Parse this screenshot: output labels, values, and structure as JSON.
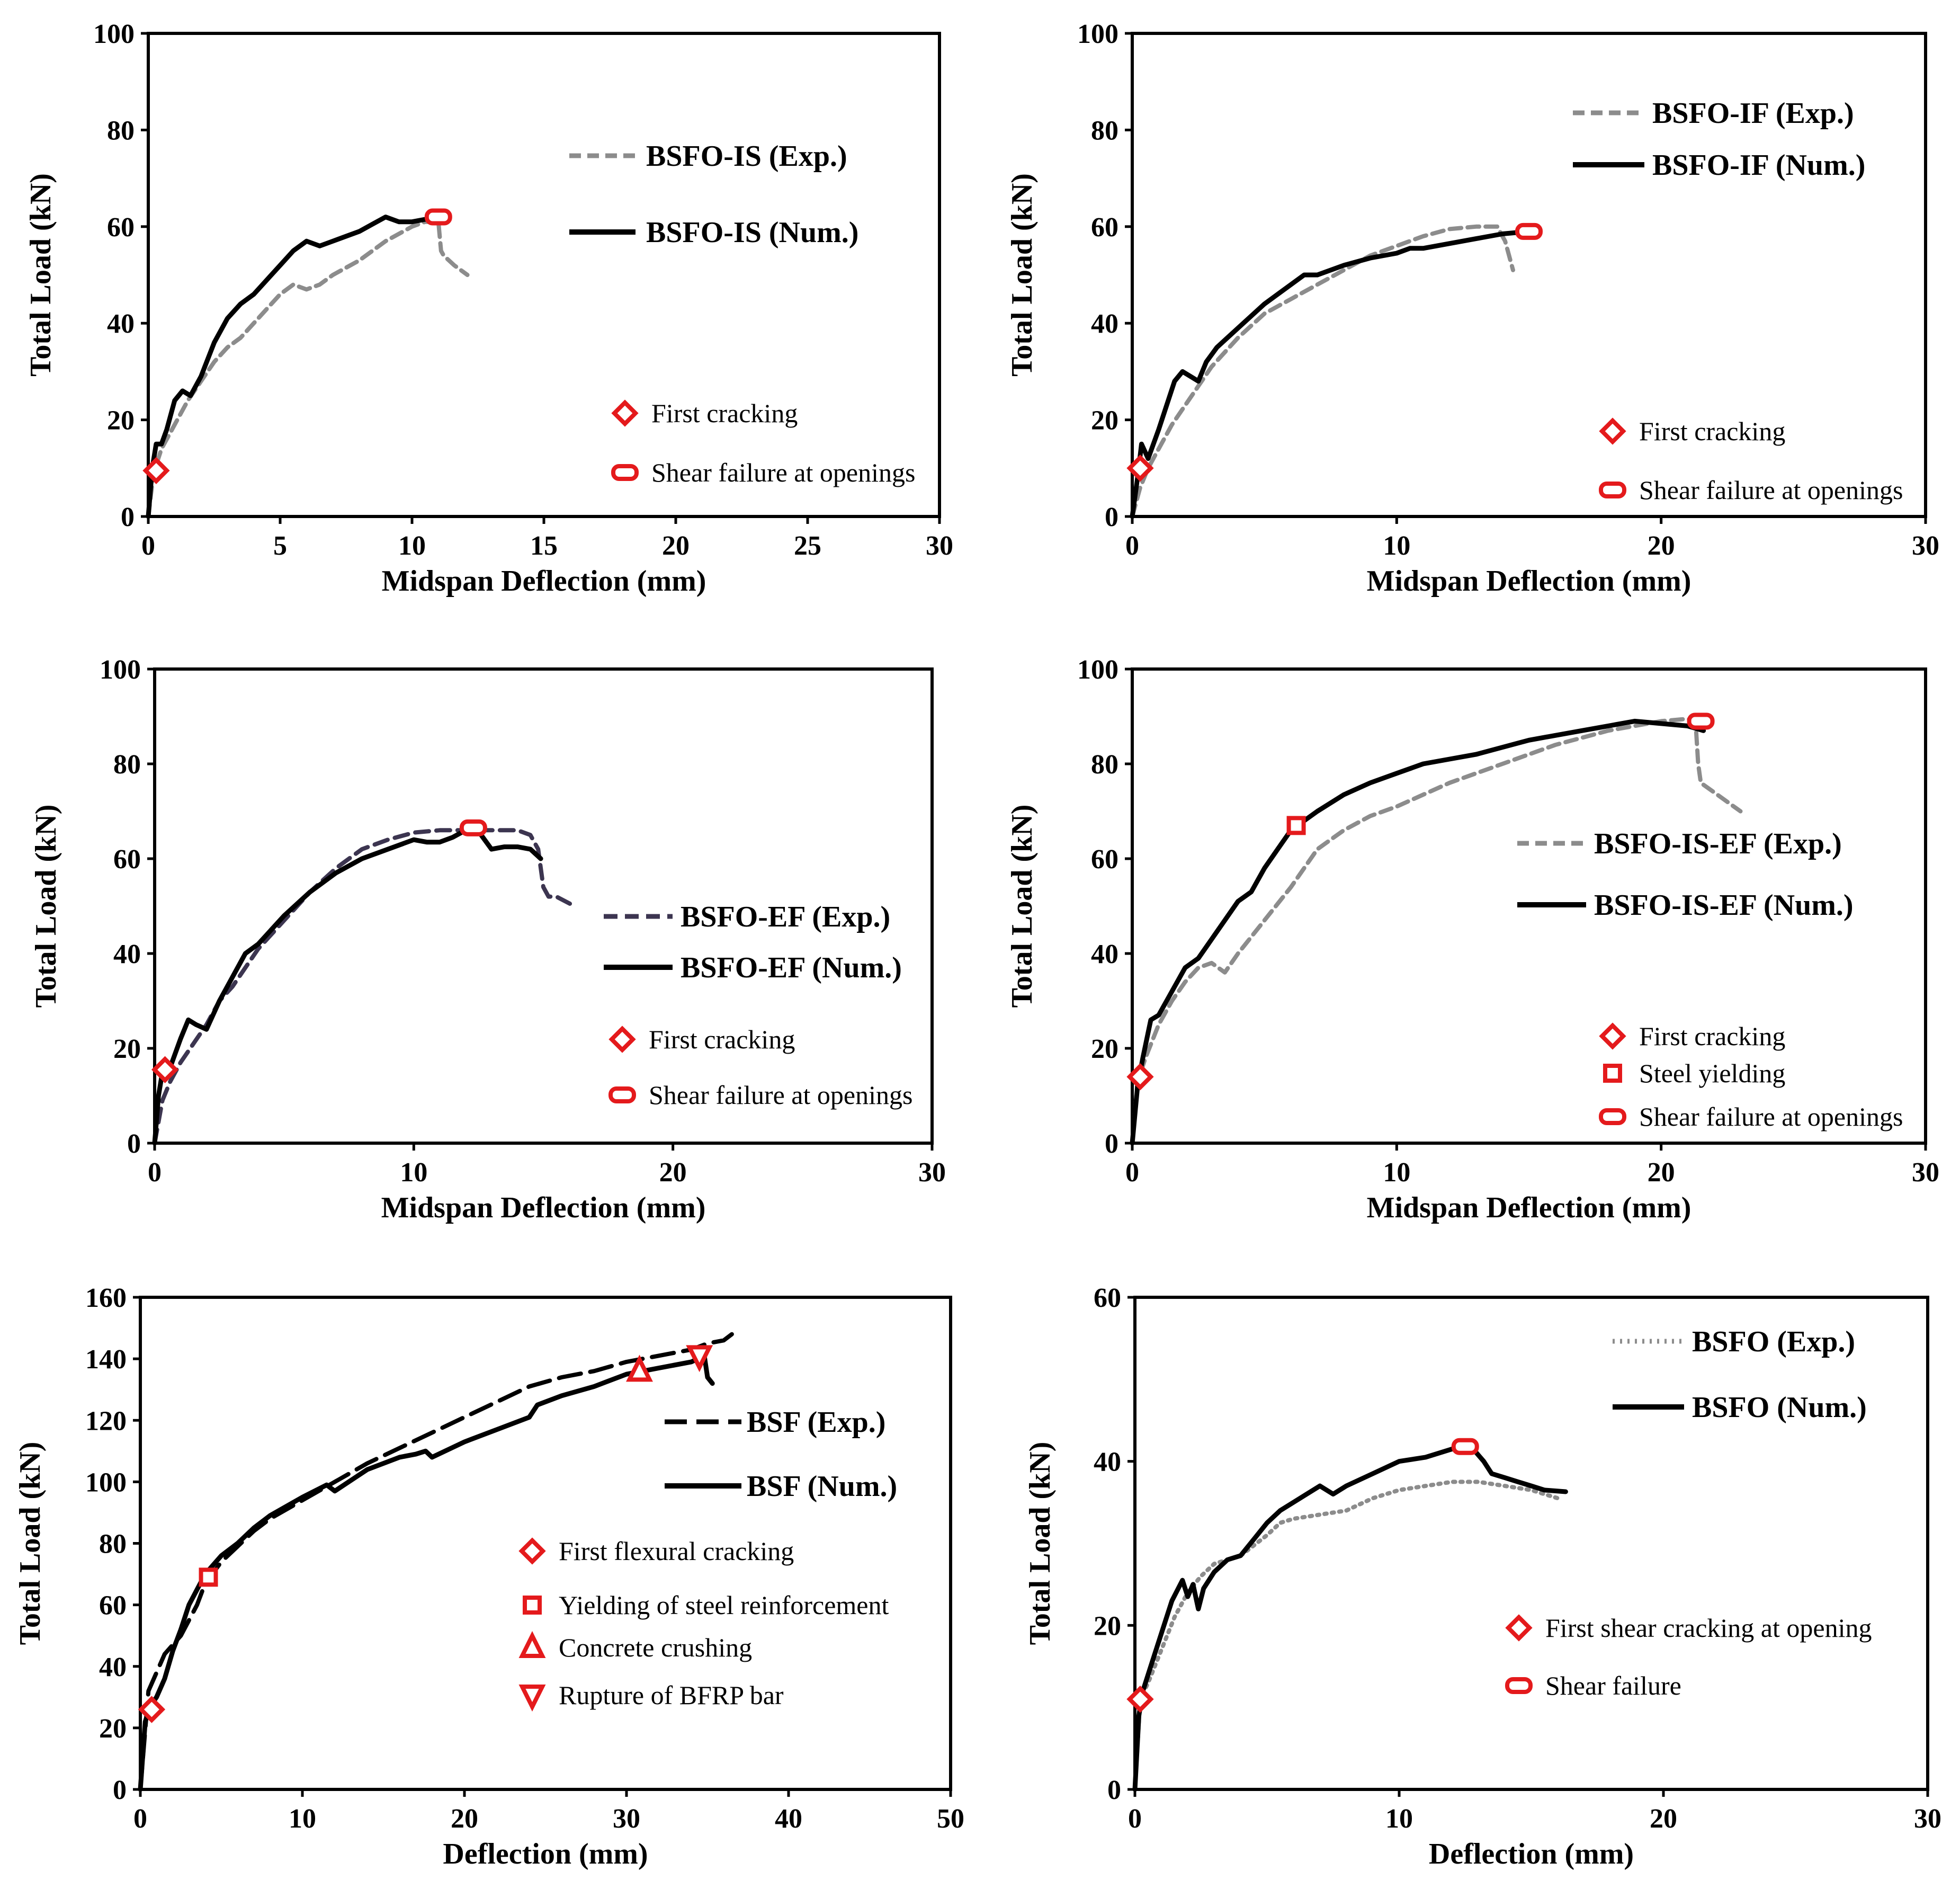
{
  "chart_data": [
    {
      "type": "line",
      "xlabel": "Midspan Deflection (mm)",
      "ylabel": "Total Load (kN)",
      "xlim": [
        0,
        30
      ],
      "ylim": [
        0,
        100
      ],
      "xticks": [
        "0",
        "5",
        "10",
        "15",
        "20",
        "25",
        "30"
      ],
      "yticks": [
        "0",
        "20",
        "40",
        "60",
        "80",
        "100"
      ],
      "legend": [
        {
          "label": "BSFO-IS (Exp.)",
          "style": "dashed-gray"
        },
        {
          "label": "BSFO-IS (Num.)",
          "style": "solid-black"
        }
      ],
      "series": [
        {
          "name": "BSFO-IS (Exp.)",
          "style": "dashed-gray",
          "x": [
            0,
            0.2,
            0.5,
            1,
            1.5,
            2,
            2.5,
            3,
            3.5,
            4,
            4.5,
            5,
            5.5,
            6,
            6.5,
            7,
            8,
            9,
            10,
            10.5,
            11,
            11.1,
            11.2,
            11.6,
            12.1
          ],
          "y": [
            0,
            9,
            14,
            19,
            24,
            28,
            32,
            35,
            37,
            40,
            43,
            46,
            48,
            47,
            48,
            50,
            53,
            57,
            60,
            61,
            61,
            55,
            54,
            52,
            50
          ]
        },
        {
          "name": "BSFO-IS (Num.)",
          "style": "solid-black",
          "x": [
            0,
            0.15,
            0.3,
            0.5,
            0.7,
            1,
            1.3,
            1.6,
            2,
            2.5,
            3,
            3.5,
            4,
            4.5,
            5,
            5.5,
            6,
            6.5,
            7,
            7.5,
            8,
            8.5,
            9,
            9.5,
            10,
            10.5,
            11
          ],
          "y": [
            0,
            10,
            15,
            15,
            18,
            24,
            26,
            25,
            29,
            36,
            41,
            44,
            46,
            49,
            52,
            55,
            57,
            56,
            57,
            58,
            59,
            60.5,
            62,
            61,
            61,
            61.5,
            61.5
          ]
        }
      ],
      "markers": [
        {
          "label": "First cracking",
          "shape": "diamond",
          "x": 0.3,
          "y": 9.5
        },
        {
          "label": "Shear failure at openings",
          "shape": "rounded-rect",
          "x": 11,
          "y": 62
        }
      ]
    },
    {
      "type": "line",
      "xlabel": "Midspan Deflection (mm)",
      "ylabel": "Total Load (kN)",
      "xlim": [
        0,
        30
      ],
      "ylim": [
        0,
        100
      ],
      "xticks": [
        "0",
        "10",
        "20",
        "30"
      ],
      "yticks": [
        "0",
        "20",
        "40",
        "60",
        "80",
        "100"
      ],
      "legend": [
        {
          "label": "BSFO-IF (Exp.)",
          "style": "dashed-gray"
        },
        {
          "label": "BSFO-IF (Num.)",
          "style": "solid-black"
        }
      ],
      "series": [
        {
          "name": "BSFO-IF (Exp.)",
          "style": "dashed-gray",
          "x": [
            0,
            0.3,
            0.6,
            1,
            1.5,
            2,
            2.5,
            3,
            4,
            5,
            6,
            7,
            8,
            9,
            10,
            11,
            12,
            13,
            13.8,
            14.1,
            14.4
          ],
          "y": [
            0,
            6,
            10,
            14,
            19,
            23,
            27,
            31,
            37,
            42,
            45,
            48,
            51,
            54,
            56,
            58,
            59.5,
            60,
            60,
            57,
            51
          ]
        },
        {
          "name": "BSFO-IF (Num.)",
          "style": "solid-black",
          "x": [
            0,
            0.2,
            0.35,
            0.6,
            1,
            1.3,
            1.6,
            1.9,
            2.2,
            2.5,
            2.8,
            3.2,
            4,
            5,
            5.5,
            6,
            6.5,
            7,
            8,
            9,
            10,
            10.5,
            11,
            12,
            13,
            14,
            15
          ],
          "y": [
            0,
            8,
            15,
            12,
            18,
            23,
            28,
            30,
            29,
            28,
            32,
            35,
            39,
            44,
            46,
            48,
            50,
            50,
            52,
            53.5,
            54.5,
            55.5,
            55.5,
            56.5,
            57.5,
            58.5,
            59
          ]
        }
      ],
      "markers": [
        {
          "label": "First cracking",
          "shape": "diamond",
          "x": 0.3,
          "y": 10
        },
        {
          "label": "Shear failure at openings",
          "shape": "rounded-rect",
          "x": 15,
          "y": 59
        }
      ]
    },
    {
      "type": "line",
      "xlabel": "Midspan Deflection (mm)",
      "ylabel": "Total Load (kN)",
      "xlim": [
        0,
        30
      ],
      "ylim": [
        0,
        100
      ],
      "xticks": [
        "0",
        "10",
        "20",
        "30"
      ],
      "yticks": [
        "0",
        "20",
        "40",
        "60",
        "80",
        "100"
      ],
      "legend": [
        {
          "label": "BSFO-EF (Exp.)",
          "style": "dashed-dark"
        },
        {
          "label": "BSFO-EF (Num.)",
          "style": "solid-black"
        }
      ],
      "series": [
        {
          "name": "BSFO-EF (Exp.)",
          "style": "dashed-dark",
          "x": [
            0,
            0.3,
            0.6,
            1,
            1.5,
            2,
            2.5,
            3,
            3.5,
            4,
            5,
            6,
            7,
            8,
            9,
            10,
            11,
            12,
            13,
            14,
            14.5,
            14.8,
            14.9,
            15,
            15.2,
            15.5,
            16.2
          ],
          "y": [
            0,
            9,
            13,
            17,
            21,
            25,
            30,
            33,
            37,
            41,
            47,
            53,
            58,
            62,
            64,
            65.5,
            66,
            66,
            66,
            66,
            65,
            62,
            58,
            54,
            52,
            52,
            50
          ]
        },
        {
          "name": "BSFO-EF (Num.)",
          "style": "solid-black",
          "x": [
            0,
            0.15,
            0.3,
            0.6,
            1,
            1.3,
            1.6,
            2,
            2.5,
            3,
            3.5,
            4,
            5,
            6,
            7,
            8,
            9,
            10,
            10.5,
            11,
            11.5,
            12,
            12.3,
            12.6,
            13,
            13.5,
            14,
            14.5,
            14.9
          ],
          "y": [
            0,
            10,
            15,
            16,
            22,
            26,
            25,
            24,
            30,
            35,
            40,
            42,
            48,
            53,
            57,
            60,
            62,
            64,
            63.5,
            63.5,
            64.5,
            66,
            67,
            65,
            62,
            62.5,
            62.5,
            62,
            60
          ]
        }
      ],
      "markers": [
        {
          "label": "First cracking",
          "shape": "diamond",
          "x": 0.4,
          "y": 15.5
        },
        {
          "label": "Shear failure at openings",
          "shape": "rounded-rect",
          "x": 12.3,
          "y": 66.5
        }
      ]
    },
    {
      "type": "line",
      "xlabel": "Midspan Deflection (mm)",
      "ylabel": "Total Load (kN)",
      "xlim": [
        0,
        30
      ],
      "ylim": [
        0,
        100
      ],
      "xticks": [
        "0",
        "10",
        "20",
        "30"
      ],
      "yticks": [
        "0",
        "20",
        "40",
        "60",
        "80",
        "100"
      ],
      "legend": [
        {
          "label": "BSFO-IS-EF (Exp.)",
          "style": "dashed-gray"
        },
        {
          "label": "BSFO-IS-EF (Num.)",
          "style": "solid-black"
        }
      ],
      "series": [
        {
          "name": "BSFO-IS-EF (Exp.)",
          "style": "dashed-gray",
          "x": [
            0,
            0.2,
            0.5,
            1,
            1.5,
            2,
            2.5,
            3,
            3.5,
            4,
            5,
            6,
            7,
            8,
            9,
            10,
            12,
            14,
            16,
            18,
            20,
            21,
            21.3,
            21.4,
            21.5,
            22,
            22.5,
            23
          ],
          "y": [
            0,
            13,
            18,
            25,
            30,
            34,
            37,
            38,
            36,
            40,
            47,
            54,
            62,
            66,
            69,
            71,
            76,
            80,
            84,
            87,
            89,
            89.5,
            89,
            80,
            76,
            74,
            72,
            70
          ]
        },
        {
          "name": "BSFO-IS-EF (Num.)",
          "style": "solid-black",
          "x": [
            0,
            0.2,
            0.4,
            0.7,
            1,
            1.5,
            2,
            2.5,
            3,
            3.5,
            4,
            4.5,
            5,
            5.5,
            6,
            6.5,
            7,
            8,
            9,
            10,
            11,
            12,
            13,
            14,
            15,
            16,
            17,
            18,
            19,
            20,
            21,
            21.6
          ],
          "y": [
            0,
            12,
            18,
            26,
            27,
            32,
            37,
            39,
            43,
            47,
            51,
            53,
            58,
            62,
            66,
            68,
            70,
            73.5,
            76,
            78,
            80,
            81,
            82,
            83.5,
            85,
            86,
            87,
            88,
            89,
            88.5,
            88,
            87
          ]
        }
      ],
      "markers": [
        {
          "label": "First cracking",
          "shape": "diamond",
          "x": 0.3,
          "y": 14
        },
        {
          "label": "Steel yielding",
          "shape": "square",
          "x": 6.2,
          "y": 67
        },
        {
          "label": "Shear failure at openings",
          "shape": "rounded-rect",
          "x": 21.5,
          "y": 89
        }
      ]
    },
    {
      "type": "line",
      "xlabel": "Deflection (mm)",
      "ylabel": "Total Load (kN)",
      "xlim": [
        0,
        50
      ],
      "ylim": [
        0,
        160
      ],
      "xticks": [
        "0",
        "10",
        "20",
        "30",
        "40",
        "50"
      ],
      "yticks": [
        "0",
        "20",
        "40",
        "60",
        "80",
        "100",
        "120",
        "140",
        "160"
      ],
      "legend": [
        {
          "label": "BSF (Exp.)",
          "style": "longdash-black"
        },
        {
          "label": "BSF (Num.)",
          "style": "solid-black"
        }
      ],
      "series": [
        {
          "name": "BSF (Exp.)",
          "style": "longdash-black",
          "x": [
            0,
            0.5,
            1,
            1.5,
            2,
            2.5,
            3,
            3.5,
            4,
            5,
            6,
            7,
            8,
            10,
            12,
            14,
            16,
            18,
            20,
            22,
            24,
            26,
            28,
            30,
            32,
            34,
            35,
            36,
            36.5
          ],
          "y": [
            0,
            32,
            38,
            44,
            47,
            50,
            55,
            60,
            67,
            74,
            79,
            84,
            88,
            94,
            100,
            106,
            111,
            116,
            121,
            126,
            131,
            134,
            136,
            139,
            141,
            143,
            145,
            146,
            148
          ]
        },
        {
          "name": "BSF (Num.)",
          "style": "solid-black",
          "x": [
            0,
            0.3,
            0.6,
            1,
            1.5,
            2,
            2.5,
            3,
            3.5,
            4,
            5,
            6,
            7,
            8,
            10,
            11.5,
            12,
            14,
            16,
            17,
            17.6,
            18,
            20,
            22,
            24,
            24.5,
            26,
            28,
            30,
            32,
            34,
            34.8,
            35,
            35.3
          ],
          "y": [
            0,
            22,
            27,
            30,
            36,
            45,
            52,
            60,
            65,
            70,
            76,
            80,
            85,
            89,
            95,
            99,
            97,
            104,
            108,
            109,
            110,
            108,
            113,
            117,
            121,
            125,
            128,
            131,
            135,
            137,
            139,
            141,
            134,
            132
          ]
        }
      ],
      "markers": [
        {
          "label": "First flexural cracking",
          "shape": "diamond",
          "x": 0.7,
          "y": 26
        },
        {
          "label": "Yielding of steel reinforcement",
          "shape": "square",
          "x": 4.2,
          "y": 69
        },
        {
          "label": "Concrete crushing",
          "shape": "triangle-up",
          "x": 30.8,
          "y": 136
        },
        {
          "label": "Rupture of BFRP bar",
          "shape": "triangle-down",
          "x": 34.5,
          "y": 141
        }
      ]
    },
    {
      "type": "line",
      "xlabel": "Deflection (mm)",
      "ylabel": "Total Load (kN)",
      "xlim": [
        0,
        30
      ],
      "ylim": [
        0,
        60
      ],
      "xticks": [
        "0",
        "10",
        "20",
        "30"
      ],
      "yticks": [
        "0",
        "20",
        "40",
        "60"
      ],
      "legend": [
        {
          "label": "BSFO (Exp.)",
          "style": "dotted-gray"
        },
        {
          "label": "BSFO (Num.)",
          "style": "solid-black"
        }
      ],
      "series": [
        {
          "name": "BSFO (Exp.)",
          "style": "dotted-gray",
          "x": [
            0,
            0.2,
            0.5,
            1,
            1.5,
            2,
            2.5,
            3,
            3.5,
            4,
            5,
            5.5,
            6,
            7,
            8,
            9,
            10,
            11,
            12,
            13,
            14,
            15,
            16
          ],
          "y": [
            0,
            11,
            13,
            17,
            21,
            24,
            26,
            27.5,
            28,
            28.5,
            31,
            32.5,
            33,
            33.5,
            34,
            35.5,
            36.5,
            37,
            37.5,
            37.5,
            37,
            36.5,
            35.5
          ]
        },
        {
          "name": "BSFO (Num.)",
          "style": "solid-black",
          "x": [
            0,
            0.15,
            0.3,
            0.6,
            1,
            1.4,
            1.8,
            2,
            2.2,
            2.4,
            2.6,
            3,
            3.5,
            4,
            4.5,
            5,
            5.5,
            6,
            6.5,
            7,
            7.5,
            8,
            9,
            10,
            11,
            12,
            12.5,
            12.8,
            13.2,
            13.5,
            14,
            14.5,
            15,
            15.5,
            16.3
          ],
          "y": [
            0,
            9,
            12,
            15,
            19,
            23,
            25.5,
            23.5,
            25,
            22,
            24.5,
            26.5,
            28,
            28.5,
            30.5,
            32.5,
            34,
            35,
            36,
            37,
            36,
            37,
            38.5,
            40,
            40.5,
            41.5,
            42,
            41.5,
            40,
            38.5,
            38,
            37.5,
            37,
            36.5,
            36.3
          ]
        }
      ],
      "markers": [
        {
          "label": "First shear cracking at opening",
          "shape": "diamond",
          "x": 0.2,
          "y": 11
        },
        {
          "label": "Shear failure",
          "shape": "rounded-rect",
          "x": 12.5,
          "y": 41.8
        }
      ]
    }
  ]
}
